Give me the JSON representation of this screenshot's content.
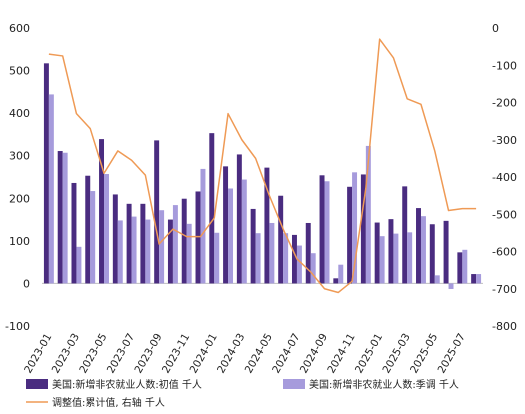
{
  "chart_data": {
    "type": "bar",
    "left_axis": {
      "ylim": [
        -100,
        600
      ],
      "ticks": [
        -100,
        0,
        100,
        200,
        300,
        400,
        500,
        600
      ]
    },
    "right_axis": {
      "ylim": [
        -800,
        0
      ],
      "ticks": [
        -800,
        -700,
        -600,
        -500,
        -400,
        -300,
        -200,
        -100,
        0
      ]
    },
    "x_tick_labels": [
      "2023-01",
      "2023-03",
      "2023-05",
      "2023-07",
      "2023-09",
      "2023-11",
      "2024-01",
      "2024-03",
      "2024-05",
      "2024-07",
      "2024-09",
      "2024-11",
      "2025-01",
      "2025-03",
      "2025-05",
      "2025-07"
    ],
    "categories": [
      "2023-01",
      "2023-02",
      "2023-03",
      "2023-04",
      "2023-05",
      "2023-06",
      "2023-07",
      "2023-08",
      "2023-09",
      "2023-10",
      "2023-11",
      "2023-12",
      "2024-01",
      "2024-02",
      "2024-03",
      "2024-04",
      "2024-05",
      "2024-06",
      "2024-07",
      "2024-08",
      "2024-09",
      "2024-10",
      "2024-11",
      "2024-12",
      "2025-01",
      "2025-02",
      "2025-03",
      "2025-04",
      "2025-05",
      "2025-06",
      "2025-07",
      "2025-08"
    ],
    "series": [
      {
        "name": "美国:新增非农就业人数:初值 千人",
        "type": "bar",
        "axis": "left",
        "color": "#4a2c80",
        "values": [
          517,
          311,
          236,
          253,
          339,
          209,
          187,
          187,
          336,
          150,
          199,
          216,
          353,
          275,
          303,
          175,
          272,
          206,
          114,
          142,
          254,
          12,
          227,
          256,
          143,
          151,
          228,
          177,
          139,
          147,
          73,
          22
        ]
      },
      {
        "name": "美国:新增非农就业人数:季调 千人",
        "type": "bar",
        "axis": "left",
        "color": "#a69bdc",
        "values": [
          444,
          307,
          86,
          217,
          257,
          148,
          157,
          150,
          172,
          184,
          140,
          269,
          119,
          223,
          244,
          118,
          142,
          118,
          89,
          71,
          240,
          44,
          261,
          323,
          111,
          117,
          120,
          158,
          19,
          -13,
          79,
          22
        ]
      },
      {
        "name": "调整值:累计值, 右轴 千人",
        "type": "line",
        "axis": "right",
        "color": "#ef9a55",
        "values": [
          -70,
          -75,
          -230,
          -270,
          -390,
          -330,
          -355,
          -395,
          -580,
          -540,
          -560,
          -560,
          -510,
          -230,
          -300,
          -350,
          -450,
          -540,
          -620,
          -655,
          -700,
          -710,
          -680,
          -430,
          -30,
          -80,
          -190,
          -205,
          -330,
          -490,
          -485,
          -485
        ]
      }
    ]
  }
}
